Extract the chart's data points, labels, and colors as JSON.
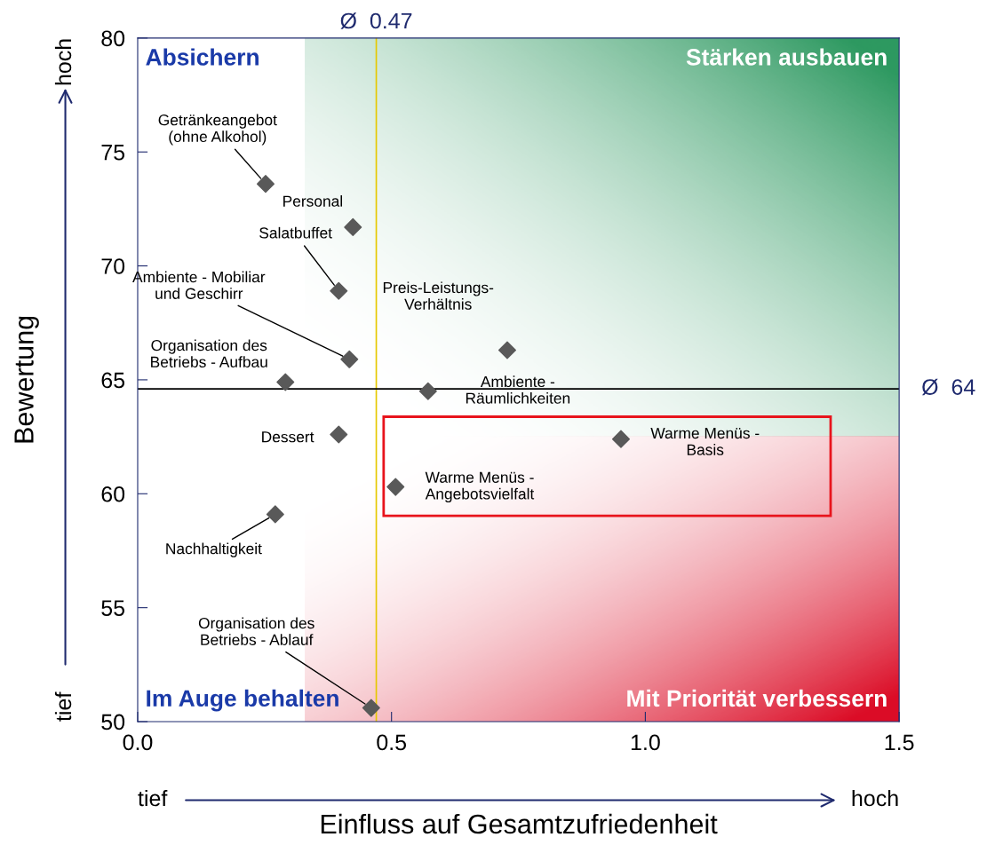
{
  "chart_data": {
    "type": "scatter",
    "xlabel": "Einfluss auf Gesamtzufriedenheit",
    "ylabel": "Bewertung",
    "x": [
      0.252,
      0.424,
      0.396,
      0.417,
      0.291,
      0.728,
      0.572,
      0.396,
      0.952,
      0.508,
      0.271,
      0.46
    ],
    "series": [
      {
        "color": "#595959",
        "values": [
          73.6,
          71.7,
          68.9,
          65.9,
          64.9,
          66.3,
          64.5,
          62.6,
          62.4,
          60.3,
          59.1,
          50.6
        ]
      }
    ],
    "marker": "diamond",
    "grid": false,
    "xlim": [
      0,
      1.5
    ],
    "xticks": [
      {
        "value": 0,
        "label": "0.0"
      },
      0.5,
      {
        "value": 1,
        "label": "1.0"
      },
      1.5
    ],
    "ylim": [
      50,
      80
    ],
    "yticks": [
      50,
      55,
      60,
      65,
      70,
      75,
      80
    ],
    "ref_lines": [
      {
        "axis": "x",
        "value": 0.47,
        "label": "Ø  0.47",
        "color": "#e6c800"
      },
      {
        "axis": "y",
        "value": 64.6,
        "label": "Ø  64",
        "color": "#000000"
      }
    ],
    "annotations": [
      {
        "text": "Getränkeangebot\n(ohne Alkohol)",
        "x": 0.252,
        "y": 73.6
      },
      {
        "text": "Personal",
        "x": 0.424,
        "y": 71.7
      },
      {
        "text": "Salatbuffet",
        "x": 0.396,
        "y": 68.9
      },
      {
        "text": "Ambiente - Mobiliar\nund Geschirr",
        "x": 0.417,
        "y": 65.9
      },
      {
        "text": "Organisation des\nBetriebs - Aufbau",
        "x": 0.291,
        "y": 64.9
      },
      {
        "text": "Preis-Leistungs-\nVerhältnis",
        "x": 0.728,
        "y": 66.3
      },
      {
        "text": "Ambiente -\nRäumlichkeiten",
        "x": 0.572,
        "y": 64.5
      },
      {
        "text": "Dessert",
        "x": 0.396,
        "y": 62.6
      },
      {
        "text": "Warme Menüs -\nBasis",
        "x": 0.952,
        "y": 62.4
      },
      {
        "text": "Warme Menüs -\nAngebotsvielfalt",
        "x": 0.508,
        "y": 60.3
      },
      {
        "text": "Nachhaltigkeit",
        "x": 0.271,
        "y": 59.1
      },
      {
        "text": "Organisation des\nBetriebs - Ablauf",
        "x": 0.46,
        "y": 50.6
      },
      "Absichern",
      "Stärken ausbauen",
      "Im Auge behalten",
      "Mit Priorität verbessern",
      "hoch",
      "tief",
      "tief",
      "hoch"
    ]
  }
}
